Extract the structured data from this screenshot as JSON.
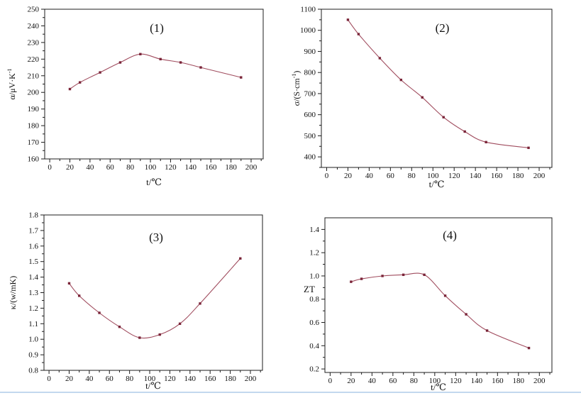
{
  "page": {
    "background": "#ffffff",
    "divider_color": "#c3d8ee"
  },
  "style": {
    "line_color": "#a04c5e",
    "marker_color": "#7a2438",
    "axis_color": "#1c1c1c",
    "text_color": "#111111"
  },
  "chart_data": [
    {
      "type": "line",
      "title": "(1)",
      "xlabel": "t/℃",
      "ylabel": "α/μV·K⁻¹",
      "ylabel_parts": [
        {
          "t": "α/μV·K"
        },
        {
          "t": "-1",
          "sup": true
        }
      ],
      "x": [
        20,
        30,
        50,
        70,
        90,
        110,
        130,
        150,
        190
      ],
      "values": [
        202,
        206,
        212,
        218,
        223,
        220,
        218,
        215,
        209
      ],
      "xlim": [
        -5,
        212
      ],
      "ylim": [
        160,
        250
      ],
      "xticks": {
        "major": [
          0,
          20,
          40,
          60,
          80,
          100,
          120,
          140,
          160,
          180,
          200
        ],
        "labels": [
          "0",
          "20",
          "40",
          "60",
          "80",
          "100",
          "120",
          "140",
          "160",
          "180",
          "200"
        ],
        "minor": [
          10,
          30,
          50,
          70,
          90,
          110,
          130,
          150,
          170,
          190,
          210
        ]
      },
      "yticks": {
        "major": [
          160,
          170,
          180,
          190,
          200,
          210,
          220,
          230,
          240,
          250
        ],
        "labels": [
          "160",
          "170",
          "180",
          "190",
          "200",
          "210",
          "220",
          "230",
          "240",
          "250"
        ],
        "minor": [
          165,
          175,
          185,
          195,
          205,
          215,
          225,
          235,
          245
        ]
      },
      "grid": false,
      "legend": null,
      "marker": "square"
    },
    {
      "type": "line",
      "title": "(2)",
      "xlabel": "t/℃",
      "ylabel": "σ/(S·cm⁻¹)",
      "ylabel_parts": [
        {
          "t": "σ/(S·cm"
        },
        {
          "t": "-1",
          "sup": true
        },
        {
          "t": ")"
        }
      ],
      "x": [
        20,
        30,
        50,
        70,
        90,
        110,
        130,
        150,
        190
      ],
      "values": [
        1050,
        982,
        868,
        765,
        682,
        588,
        520,
        470,
        443
      ],
      "xlim": [
        -5,
        212
      ],
      "ylim": [
        350,
        1100
      ],
      "xticks": {
        "major": [
          0,
          20,
          40,
          60,
          80,
          100,
          120,
          140,
          160,
          180,
          200
        ],
        "labels": [
          "0",
          "20",
          "40",
          "60",
          "80",
          "100",
          "120",
          "140",
          "160",
          "180",
          "200"
        ],
        "minor": [
          10,
          30,
          50,
          70,
          90,
          110,
          130,
          150,
          170,
          190,
          210
        ]
      },
      "yticks": {
        "major": [
          400,
          500,
          600,
          700,
          800,
          900,
          1000,
          1100
        ],
        "labels": [
          "400",
          "500",
          "600",
          "700",
          "800",
          "900",
          "1000",
          "1100"
        ],
        "minor": [
          350,
          450,
          550,
          650,
          750,
          850,
          950,
          1050
        ]
      },
      "grid": false,
      "legend": null,
      "marker": "square"
    },
    {
      "type": "line",
      "title": "(3)",
      "xlabel": "t/℃",
      "ylabel": "κ/(w/mK)",
      "ylabel_parts": [
        {
          "t": "κ/(w/mK)"
        }
      ],
      "x": [
        20,
        30,
        50,
        70,
        90,
        110,
        130,
        150,
        190
      ],
      "values": [
        1.36,
        1.28,
        1.17,
        1.08,
        1.01,
        1.03,
        1.1,
        1.23,
        1.52
      ],
      "xlim": [
        -5,
        212
      ],
      "ylim": [
        0.8,
        1.8
      ],
      "xticks": {
        "major": [
          0,
          20,
          40,
          60,
          80,
          100,
          120,
          140,
          160,
          180,
          200
        ],
        "labels": [
          "0",
          "20",
          "40",
          "60",
          "80",
          "100",
          "120",
          "140",
          "160",
          "180",
          "200"
        ],
        "minor": [
          10,
          30,
          50,
          70,
          90,
          110,
          130,
          150,
          170,
          190,
          210
        ]
      },
      "yticks": {
        "major": [
          0.8,
          0.9,
          1.0,
          1.1,
          1.2,
          1.3,
          1.4,
          1.5,
          1.6,
          1.7,
          1.8
        ],
        "labels": [
          "0.8",
          "0.9",
          "1.0",
          "1.1",
          "1.2",
          "1.3",
          "1.4",
          "1.5",
          "1.6",
          "1.7",
          "1.8"
        ],
        "minor": [
          0.85,
          0.95,
          1.05,
          1.15,
          1.25,
          1.35,
          1.45,
          1.55,
          1.65,
          1.75
        ]
      },
      "grid": false,
      "legend": null,
      "marker": "square"
    },
    {
      "type": "line",
      "title": "(4)",
      "xlabel": "t/℃",
      "ylabel": "ZT",
      "ylabel_parts": [
        {
          "t": "ZT"
        }
      ],
      "x": [
        20,
        30,
        50,
        70,
        90,
        110,
        130,
        150,
        190
      ],
      "values": [
        0.95,
        0.975,
        1.0,
        1.01,
        1.01,
        0.83,
        0.67,
        0.53,
        0.38
      ],
      "xlim": [
        -5,
        212
      ],
      "ylim": [
        0.17,
        1.5
      ],
      "xticks": {
        "major": [
          0,
          20,
          40,
          60,
          80,
          100,
          120,
          140,
          160,
          180,
          200
        ],
        "labels": [
          "0",
          "20",
          "40",
          "60",
          "80",
          "100",
          "120",
          "140",
          "160",
          "180",
          "200"
        ],
        "minor": [
          10,
          30,
          50,
          70,
          90,
          110,
          130,
          150,
          170,
          190,
          210
        ]
      },
      "yticks": {
        "major": [
          0.2,
          0.4,
          0.6,
          0.8,
          1.0,
          1.2,
          1.4
        ],
        "labels": [
          "0.2",
          "0.4",
          "0.6",
          "0.8",
          "1.0",
          "1.2",
          "1.4"
        ],
        "minor": [
          0.3,
          0.5,
          0.7,
          0.9,
          1.1,
          1.3
        ]
      },
      "grid": false,
      "legend": null,
      "marker": "square"
    }
  ]
}
